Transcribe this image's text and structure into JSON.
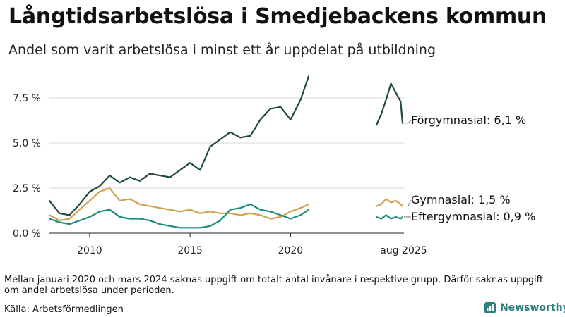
{
  "header": {
    "title": "Långtidsarbetslösa i Smedjebackens kommun",
    "subtitle": "Andel som varit arbetslösa i minst ett år uppdelat på utbildning"
  },
  "footer": {
    "note": "Mellan januari 2020 och mars 2024 saknas uppgift om totalt antal invånare i respektive grupp. Därför saknas uppgift om andel arbetslösa under perioden.",
    "source": "Källa: Arbetsförmedlingen",
    "brand": "Newsworthy"
  },
  "colors": {
    "forgymnasial": "#1f4a3c",
    "gymnasial": "#d3a04d",
    "eftergymnasial": "#1a8c7c",
    "axis": "#222222",
    "brand": "#2e7d7d"
  },
  "chart_data": {
    "type": "line",
    "title": "Långtidsarbetslösa i Smedjebackens kommun",
    "subtitle": "Andel som varit arbetslösa i minst ett år uppdelat på utbildning",
    "xlabel": "",
    "ylabel": "",
    "ylim": [
      0,
      9
    ],
    "yticks": [
      0,
      2.5,
      5,
      7.5
    ],
    "ytick_labels": [
      "0,0 %",
      "2,5 %",
      "5,0 %",
      "7,5 %"
    ],
    "xticks": [
      2010,
      2015,
      2020
    ],
    "xtick_labels": [
      "2010",
      "2015",
      "2020"
    ],
    "gap_label": "aug 2025",
    "grid": true,
    "series": [
      {
        "name": "Förgymnasial",
        "end_label": "Förgymnasial: 6,1 %",
        "color_key": "forgymnasial",
        "segments": [
          {
            "x": [
              2008.0,
              2008.5,
              2009.0,
              2009.5,
              2010.0,
              2010.5,
              2011.0,
              2011.5,
              2012.0,
              2012.5,
              2013.0,
              2013.5,
              2014.0,
              2014.5,
              2015.0,
              2015.5,
              2016.0,
              2016.5,
              2017.0,
              2017.5,
              2018.0,
              2018.5,
              2019.0,
              2019.5,
              2020.0,
              2020.5,
              2020.9
            ],
            "y": [
              1.8,
              1.1,
              1.0,
              1.6,
              2.3,
              2.6,
              3.2,
              2.8,
              3.1,
              2.9,
              3.3,
              3.2,
              3.1,
              3.5,
              3.9,
              3.5,
              4.8,
              5.2,
              5.6,
              5.3,
              5.4,
              6.3,
              6.9,
              7.0,
              6.3,
              7.4,
              8.7
            ]
          },
          {
            "x": [
              2024.25,
              2024.5,
              2024.75,
              2025.0,
              2025.25,
              2025.5,
              2025.6
            ],
            "y": [
              6.0,
              6.6,
              7.4,
              8.3,
              7.8,
              7.3,
              6.1
            ]
          }
        ]
      },
      {
        "name": "Gymnasial",
        "end_label": "Gymnasial: 1,5 %",
        "color_key": "gymnasial",
        "segments": [
          {
            "x": [
              2008.0,
              2008.5,
              2009.0,
              2009.5,
              2010.0,
              2010.5,
              2011.0,
              2011.5,
              2012.0,
              2012.5,
              2013.0,
              2013.5,
              2014.0,
              2014.5,
              2015.0,
              2015.5,
              2016.0,
              2016.5,
              2017.0,
              2017.5,
              2018.0,
              2018.5,
              2019.0,
              2019.5,
              2020.0,
              2020.5,
              2020.9
            ],
            "y": [
              1.0,
              0.7,
              0.8,
              1.3,
              1.8,
              2.3,
              2.5,
              1.8,
              1.9,
              1.6,
              1.5,
              1.4,
              1.3,
              1.2,
              1.3,
              1.1,
              1.2,
              1.1,
              1.1,
              1.0,
              1.1,
              1.0,
              0.8,
              0.9,
              1.2,
              1.4,
              1.6
            ]
          },
          {
            "x": [
              2024.25,
              2024.5,
              2024.75,
              2025.0,
              2025.25,
              2025.5,
              2025.6
            ],
            "y": [
              1.5,
              1.6,
              1.9,
              1.7,
              1.8,
              1.6,
              1.5
            ]
          }
        ]
      },
      {
        "name": "Eftergymnasial",
        "end_label": "Eftergymnasial: 0,9 %",
        "color_key": "eftergymnasial",
        "segments": [
          {
            "x": [
              2008.0,
              2008.5,
              2009.0,
              2009.5,
              2010.0,
              2010.5,
              2011.0,
              2011.5,
              2012.0,
              2012.5,
              2013.0,
              2013.5,
              2014.0,
              2014.5,
              2015.0,
              2015.5,
              2016.0,
              2016.5,
              2017.0,
              2017.5,
              2018.0,
              2018.5,
              2019.0,
              2019.5,
              2020.0,
              2020.5,
              2020.9
            ],
            "y": [
              0.8,
              0.6,
              0.5,
              0.7,
              0.9,
              1.2,
              1.3,
              0.9,
              0.8,
              0.8,
              0.7,
              0.5,
              0.4,
              0.3,
              0.3,
              0.3,
              0.4,
              0.7,
              1.3,
              1.4,
              1.6,
              1.3,
              1.2,
              1.0,
              0.8,
              1.0,
              1.3
            ]
          },
          {
            "x": [
              2024.25,
              2024.5,
              2024.75,
              2025.0,
              2025.25,
              2025.5,
              2025.6
            ],
            "y": [
              0.9,
              0.8,
              1.0,
              0.8,
              0.9,
              0.8,
              0.9
            ]
          }
        ]
      }
    ]
  }
}
